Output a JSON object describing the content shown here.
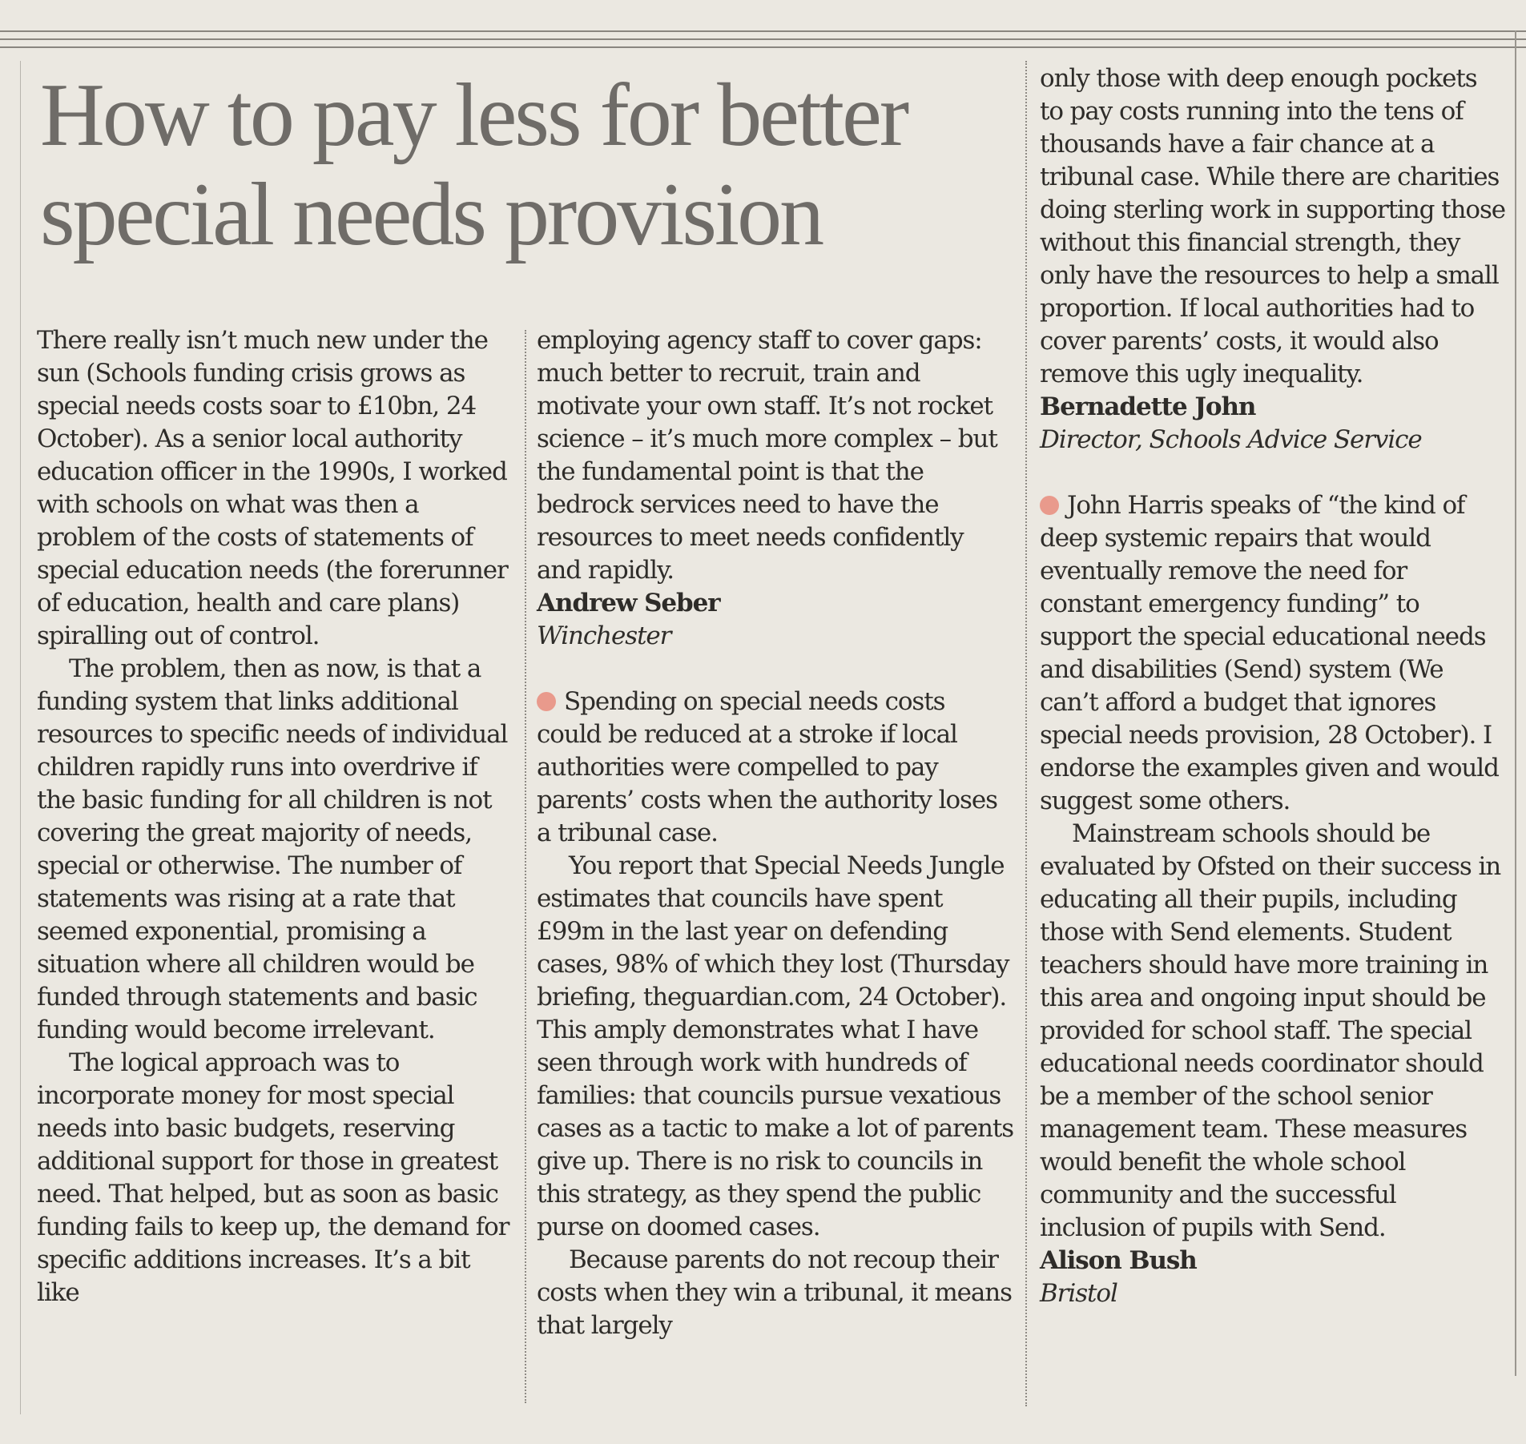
{
  "headline": "How to pay less for better special needs provision",
  "letters": [
    {
      "paragraphs": [
        "There really isn’t much new under the sun (Schools funding crisis grows as special needs costs soar to £10bn, 24 October). As a senior local authority education officer in the 1990s, I worked with schools on what was then a problem of the costs of statements of special education needs (the forerunner of education, health and care plans) spiralling out of control.",
        "The problem, then as now, is that a funding system that links additional resources to specific needs of individual children rapidly runs into overdrive if the basic funding for all children is not covering the great majority of needs, special or otherwise. The number of statements was rising at a rate that seemed exponential, promising a situation where all children would be funded through statements and basic funding would become irrelevant.",
        "The logical approach was to incorporate money for most special needs into basic budgets, reserving additional support for those in greatest need. That helped, but as soon as basic funding fails to keep up, the demand for specific additions increases. It’s a bit like",
        "employing agency staff to cover gaps: much better to recruit, train and motivate your own staff. It’s not rocket science – it’s much more complex – but the fundamental point is that the bedrock services need to have the resources to meet needs confidently and rapidly."
      ],
      "author": "Andrew Seber",
      "role": "Winchester"
    },
    {
      "paragraphs": [
        "Spending on special needs costs could be reduced at a stroke if local authorities were compelled to pay parents’ costs when the authority loses a tribunal case.",
        "You report that Special Needs Jungle estimates that councils have spent £99m in the last year on defending cases, 98% of which they lost (Thursday briefing, theguardian.com, 24 October). This amply demonstrates what I have seen through work with hundreds of families: that councils pursue vexatious cases as a tactic to make a lot of parents give up. There is no risk to councils in this strategy, as they spend the public purse on doomed cases.",
        "Because parents do not recoup their costs when they win a tribunal, it means that largely",
        "only those with deep enough pockets to pay costs running into the tens of thousands have a fair chance at a tribunal case. While there are charities doing sterling work in supporting those without this financial strength, they only have the resources to help a small proportion. If local authorities had to cover parents’ costs, it would also remove this ugly inequality."
      ],
      "author": "Bernadette John",
      "role": "Director, Schools Advice Service"
    },
    {
      "paragraphs": [
        "John Harris speaks of “the kind of deep systemic repairs that would eventually remove the need for constant emergency funding” to support the special educational needs and disabilities (Send) system (We can’t afford a budget that ignores special needs provision, 28 October). I endorse the examples given and would suggest some others.",
        "Mainstream schools should be evaluated by Ofsted on their success in educating all their pupils, including those with Send elements. Student teachers should have more training in this area and ongoing input should be provided for school staff. The special educational needs coordinator should be a member of the school senior management team. These measures would benefit the whole school community and the successful inclusion of pupils with Send."
      ],
      "author": "Alison Bush",
      "role": "Bristol"
    }
  ]
}
